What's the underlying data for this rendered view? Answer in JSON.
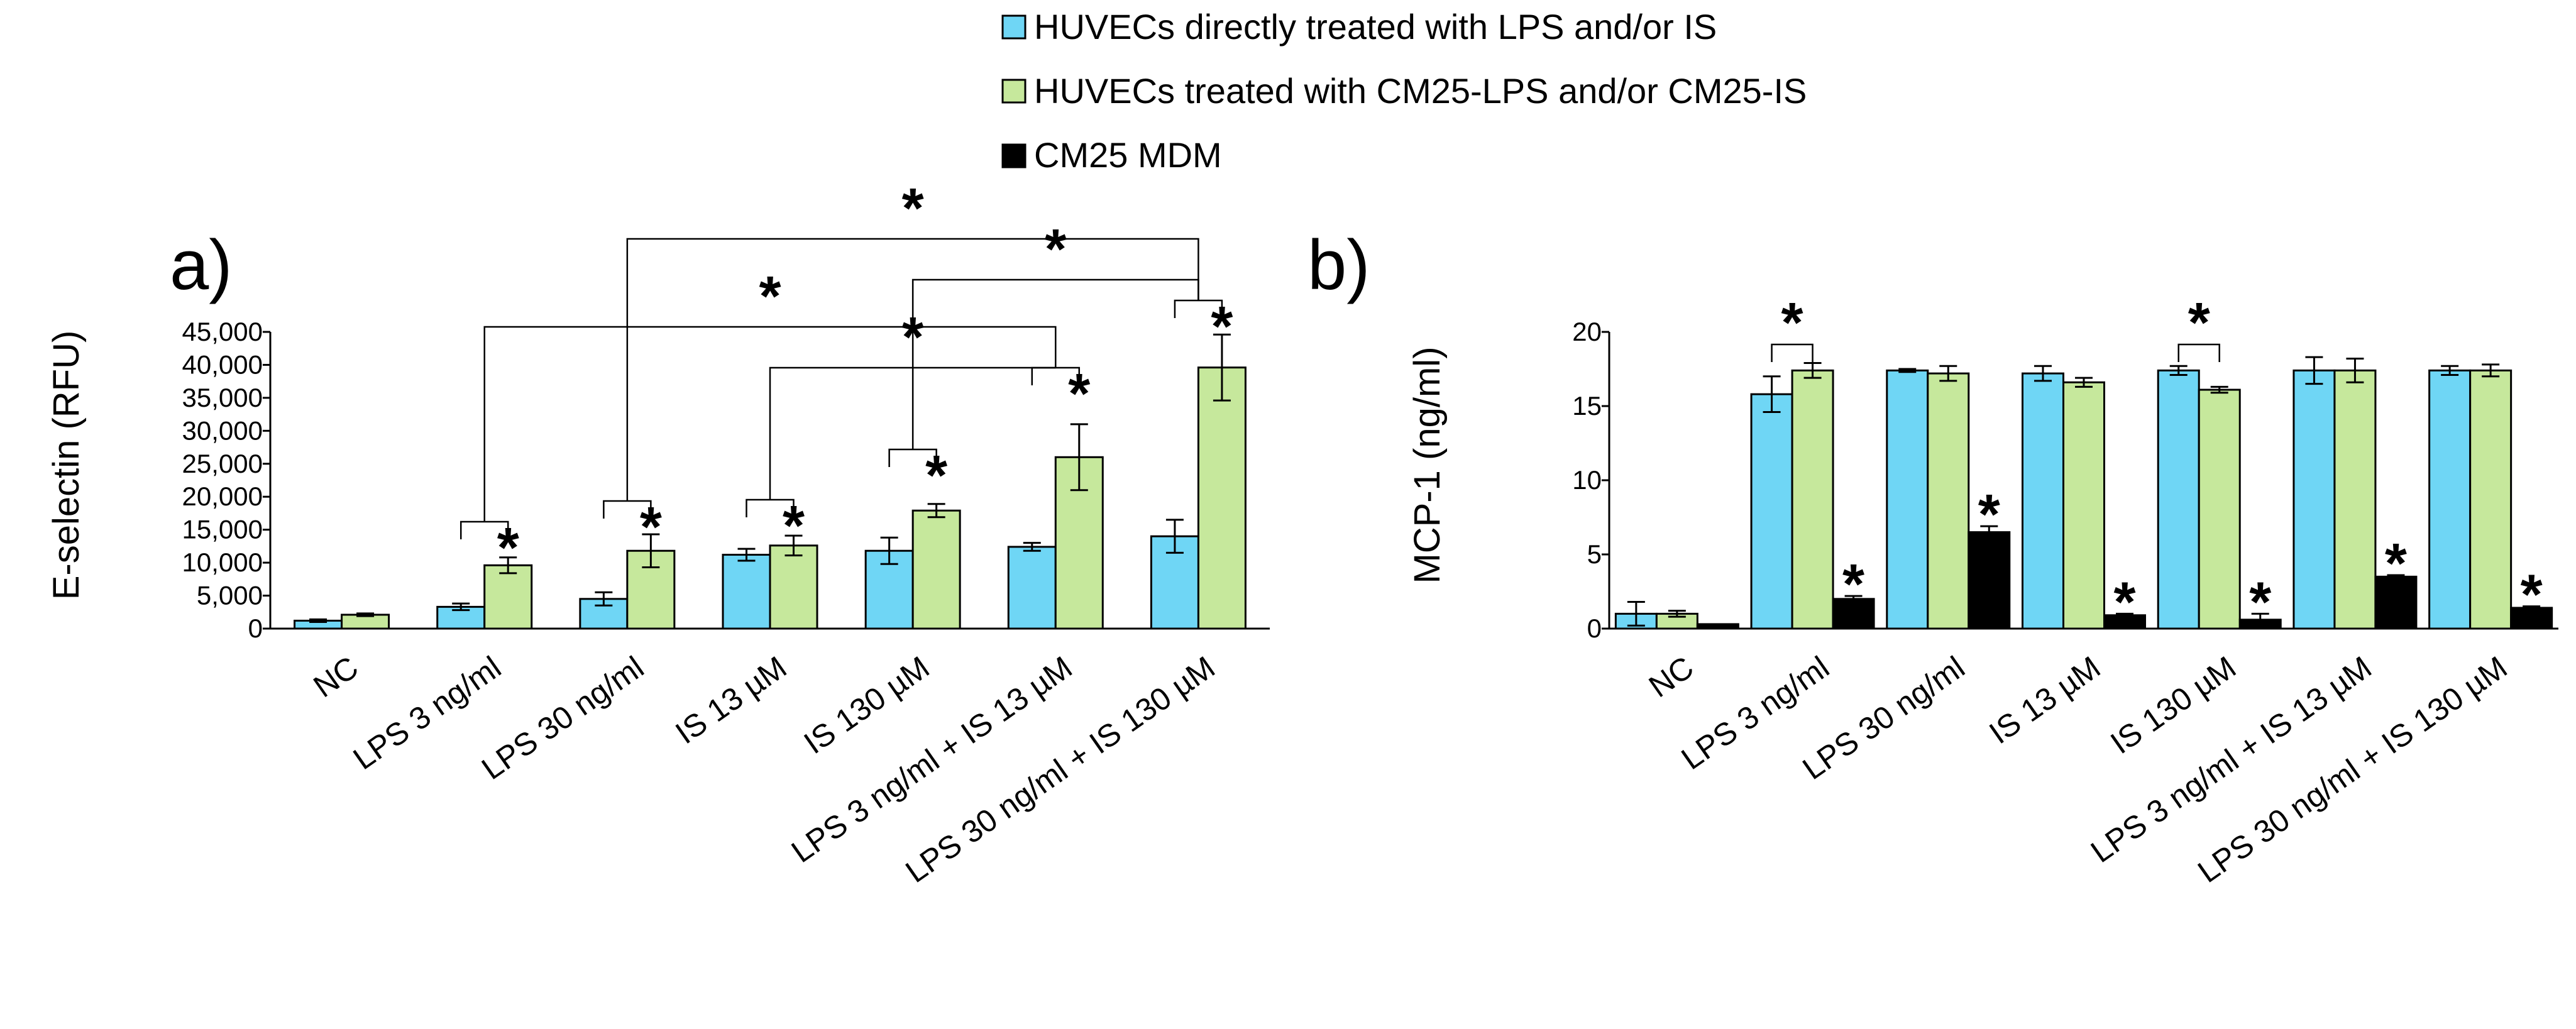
{
  "legend": {
    "items": [
      {
        "name": "HUVECs directly treated with LPS and/or IS",
        "color": "#6fd6f5"
      },
      {
        "name": "HUVECs treated with CM25-LPS and/or CM25-IS",
        "color": "#c6e89c"
      },
      {
        "name": "CM25 MDM",
        "color": "#000000"
      }
    ]
  },
  "chart_data": [
    {
      "type": "bar",
      "panel_label": "a)",
      "ylabel": "E-selectin (RFU)",
      "ylim": [
        0,
        45000
      ],
      "yticks": [
        0,
        5000,
        10000,
        15000,
        20000,
        25000,
        30000,
        35000,
        40000,
        45000
      ],
      "ytick_labels": [
        "0",
        "5,000",
        "10,000",
        "15,000",
        "20,000",
        "25,000",
        "30,000",
        "35,000",
        "40,000",
        "45,000"
      ],
      "categories": [
        "NC",
        "LPS 3 ng/ml",
        "LPS 30 ng/ml",
        "IS 13 µM",
        "IS 130 µM",
        "LPS 3 ng/ml + IS 13 µM",
        "LPS 30 ng/ml + IS 130 µM"
      ],
      "series": [
        {
          "name": "HUVECs directly treated with LPS and/or IS",
          "values": [
            1200,
            3300,
            4500,
            11200,
            11800,
            12400,
            14000
          ],
          "errors": [
            200,
            500,
            1000,
            900,
            2000,
            600,
            2500
          ]
        },
        {
          "name": "HUVECs treated with CM25-LPS and/or CM25-IS",
          "values": [
            2100,
            9600,
            11800,
            12600,
            17900,
            26000,
            39600
          ],
          "errors": [
            200,
            1200,
            2500,
            1500,
            1000,
            5000,
            5000
          ]
        }
      ],
      "annotations": "* significance markers above CM25-treated bars and brackets comparing treatments",
      "star_symbol": "*"
    },
    {
      "type": "bar",
      "panel_label": "b)",
      "ylabel": "MCP-1 (ng/ml)",
      "ylim": [
        0,
        20
      ],
      "yticks": [
        0,
        5,
        10,
        15,
        20
      ],
      "ytick_labels": [
        "0",
        "5",
        "10",
        "15",
        "20"
      ],
      "categories": [
        "NC",
        "LPS 3 ng/ml",
        "LPS 30 ng/ml",
        "IS 13 µM",
        "IS 130 µM",
        "LPS 3 ng/ml + IS 13 µM",
        "LPS 30 ng/ml + IS 130 µM"
      ],
      "series": [
        {
          "name": "HUVECs directly treated with LPS and/or IS",
          "values": [
            1.0,
            15.8,
            17.4,
            17.2,
            17.4,
            17.4,
            17.4
          ],
          "errors": [
            0.8,
            1.2,
            0.1,
            0.5,
            0.3,
            0.9,
            0.3
          ]
        },
        {
          "name": "HUVECs treated with CM25-LPS and/or CM25-IS",
          "values": [
            1.0,
            17.4,
            17.2,
            16.6,
            16.1,
            17.4,
            17.4
          ],
          "errors": [
            0.2,
            0.5,
            0.5,
            0.3,
            0.2,
            0.8,
            0.4
          ]
        },
        {
          "name": "CM25 MDM",
          "values": [
            0.3,
            2.0,
            6.5,
            0.9,
            0.6,
            3.5,
            1.4
          ],
          "errors": [
            0,
            0.2,
            0.4,
            0.1,
            0.4,
            0.1,
            0.1
          ]
        }
      ],
      "star_symbol": "*"
    }
  ]
}
